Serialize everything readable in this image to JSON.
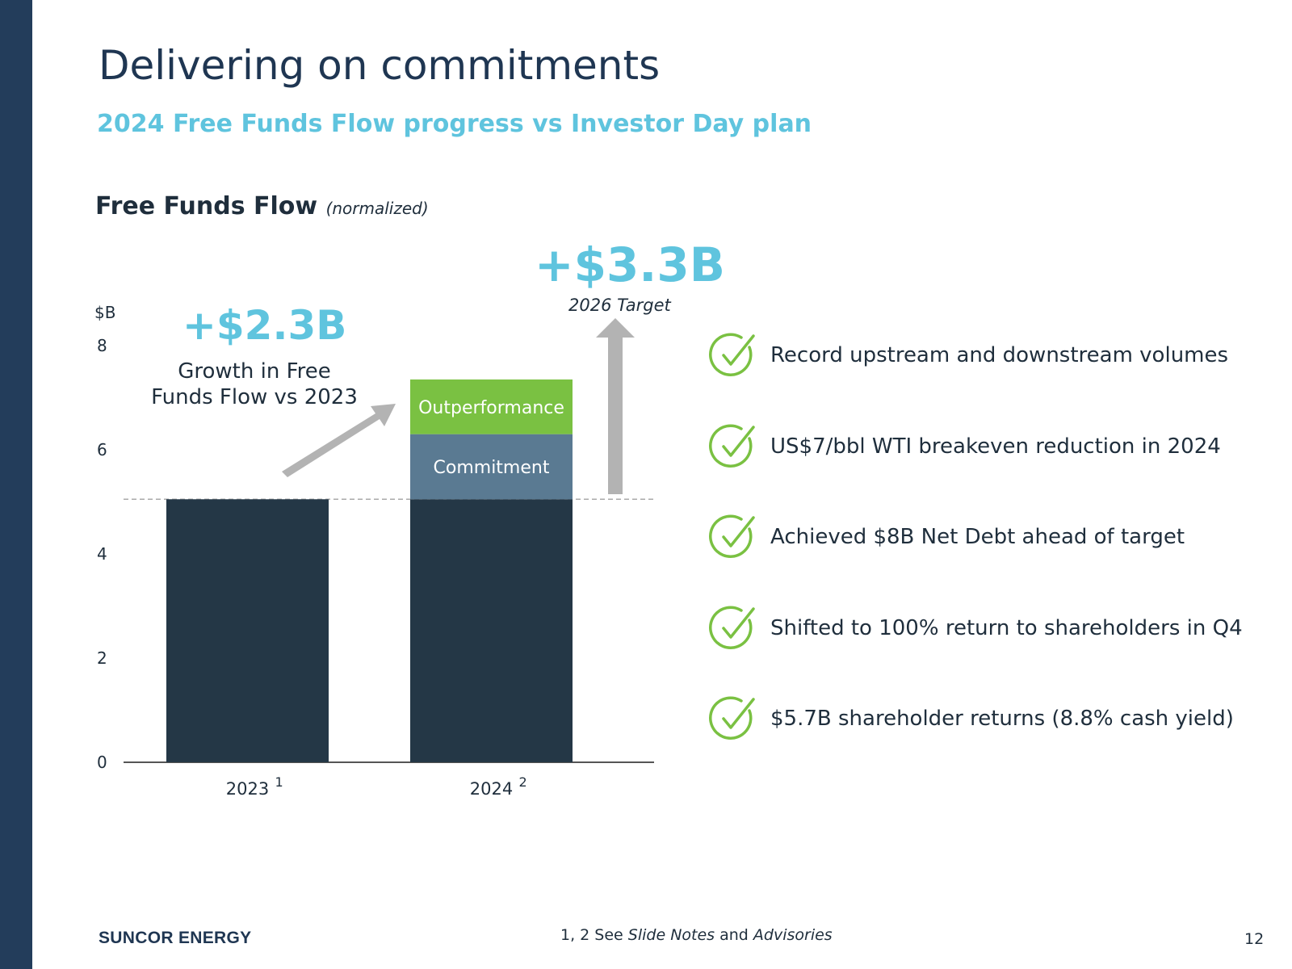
{
  "slide": {
    "title": "Delivering on commitments",
    "subtitle": "2024 Free Funds Flow progress vs Investor Day plan",
    "chart_heading": "Free Funds Flow",
    "chart_heading_note": "(normalized)",
    "growth_callout": "+$2.3B",
    "growth_caption_line1": "Growth in Free",
    "growth_caption_line2": "Funds Flow vs 2023",
    "target_callout": "+$3.3B",
    "target_caption": "2026 Target"
  },
  "chart_data": {
    "type": "bar",
    "stacked": true,
    "title": "Free Funds Flow",
    "ylabel": "$B",
    "ylim": [
      0,
      8
    ],
    "yticks": [
      0,
      2,
      4,
      6,
      8
    ],
    "categories": [
      "2023",
      "2024"
    ],
    "category_footnotes": [
      "1",
      "2"
    ],
    "series": [
      {
        "name": "",
        "values": [
          5.05,
          5.05
        ]
      },
      {
        "name": "Commitment",
        "values": [
          0,
          1.25
        ]
      },
      {
        "name": "Outperformance",
        "values": [
          0,
          1.05
        ]
      }
    ],
    "reference_line": 5.05,
    "colors": {
      "base": "#243746",
      "commitment": "#5a7a92",
      "outperformance": "#7ac142",
      "arrow": "#b3b3b3",
      "reference": "#aaaaaa"
    }
  },
  "checklist": [
    {
      "icon": "checkmark-circle-icon",
      "text": "Record upstream and downstream volumes"
    },
    {
      "icon": "checkmark-circle-icon",
      "text": "US$7/bbl WTI breakeven reduction in 2024"
    },
    {
      "icon": "checkmark-circle-icon",
      "text": "Achieved $8B Net Debt ahead of target"
    },
    {
      "icon": "checkmark-circle-icon",
      "text": "Shifted to 100% return to shareholders in Q4"
    },
    {
      "icon": "checkmark-circle-icon",
      "text": "$5.7B shareholder returns (8.8% cash yield)"
    }
  ],
  "footer": {
    "brand": "SUNCOR ENERGY",
    "note_prefix": "1, 2 See ",
    "note_link1": "Slide Notes",
    "note_mid": " and ",
    "note_link2": "Advisories",
    "page_number": "12"
  },
  "colors": {
    "sidebar": "#233d5b",
    "accent": "#5fc4de",
    "check": "#7ac142"
  }
}
